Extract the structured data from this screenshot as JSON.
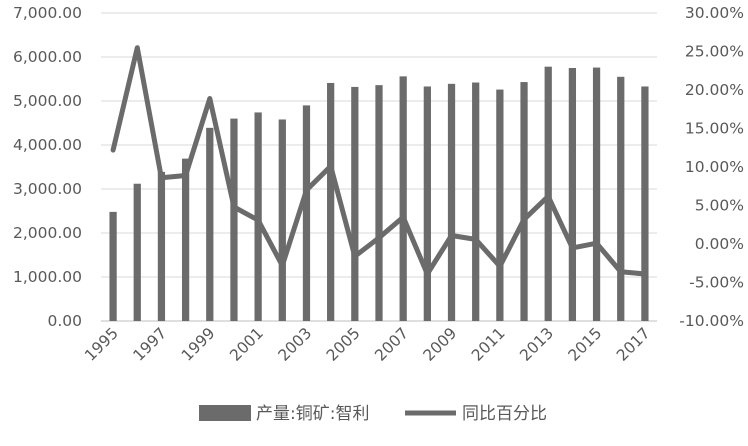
{
  "chart_data": {
    "type": "bar",
    "categories": [
      "1995",
      "1996",
      "1997",
      "1998",
      "1999",
      "2000",
      "2001",
      "2002",
      "2003",
      "2004",
      "2005",
      "2006",
      "2007",
      "2008",
      "2009",
      "2010",
      "2011",
      "2012",
      "2013",
      "2014",
      "2015",
      "2016",
      "2017"
    ],
    "x_tick_labels": [
      "1995",
      "1997",
      "1999",
      "2001",
      "2003",
      "2005",
      "2007",
      "2009",
      "2011",
      "2013",
      "2015",
      "2017"
    ],
    "series": [
      {
        "name": "产量:铜矿:智利",
        "type": "bar",
        "axis": "left",
        "color": "#6b6b6b",
        "values": [
          2480,
          3120,
          3390,
          3690,
          4390,
          4600,
          4740,
          4580,
          4900,
          5410,
          5320,
          5360,
          5560,
          5330,
          5390,
          5420,
          5260,
          5430,
          5780,
          5750,
          5760,
          5550,
          5330
        ]
      },
      {
        "name": "同比百分比",
        "type": "line",
        "axis": "right",
        "color": "#6b6b6b",
        "values": [
          12.2,
          25.5,
          8.6,
          8.9,
          18.9,
          4.8,
          3.1,
          -2.8,
          7.0,
          10.1,
          -1.6,
          0.8,
          3.5,
          -3.9,
          1.1,
          0.6,
          -2.9,
          3.2,
          6.2,
          -0.5,
          0.1,
          -3.6,
          -3.9
        ]
      }
    ],
    "yaxis_left": {
      "ylim": [
        0,
        7000
      ],
      "ticks": [
        "0.00",
        "1,000.00",
        "2,000.00",
        "3,000.00",
        "4,000.00",
        "5,000.00",
        "6,000.00",
        "7,000.00"
      ]
    },
    "yaxis_right": {
      "ylim": [
        -10,
        30
      ],
      "ticks": [
        "-10.00%",
        "-5.00%",
        "0.00%",
        "5.00%",
        "10.00%",
        "15.00%",
        "20.00%",
        "25.00%",
        "30.00%"
      ]
    },
    "grid": true,
    "legend": "bottom"
  }
}
